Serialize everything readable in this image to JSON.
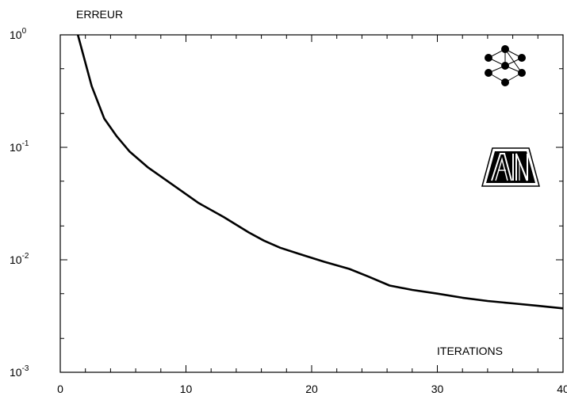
{
  "chart_data": {
    "type": "line",
    "ylabel": "ERREUR",
    "xlabel": "ITERATIONS",
    "x_scale": "linear",
    "y_scale": "log",
    "xlim": [
      0,
      40
    ],
    "ylim": [
      0.001,
      1
    ],
    "x_ticks": [
      "0",
      "10",
      "20",
      "30",
      "40"
    ],
    "y_ticks": [
      {
        "base": "10",
        "exp": "0"
      },
      {
        "base": "10",
        "exp": "-1"
      },
      {
        "base": "10",
        "exp": "-2"
      },
      {
        "base": "10",
        "exp": "-3"
      }
    ],
    "grid": false,
    "line_color": "#000000",
    "series": [
      {
        "x": [
          1.4,
          2.5,
          3.5,
          4.5,
          5.5,
          7,
          9,
          11,
          13,
          15,
          16.2,
          17.5,
          19,
          21,
          23,
          24.5,
          26.2,
          28,
          30,
          32,
          34,
          36,
          38,
          40
        ],
        "y": [
          1.0,
          0.35,
          0.18,
          0.125,
          0.092,
          0.066,
          0.046,
          0.032,
          0.024,
          0.0175,
          0.0148,
          0.0128,
          0.0113,
          0.0096,
          0.0083,
          0.0071,
          0.0059,
          0.0054,
          0.005,
          0.0046,
          0.0043,
          0.0041,
          0.0039,
          0.0037
        ]
      }
    ],
    "icons": {
      "network": "neural-network-icon",
      "logo": "ain-logo-icon"
    }
  }
}
